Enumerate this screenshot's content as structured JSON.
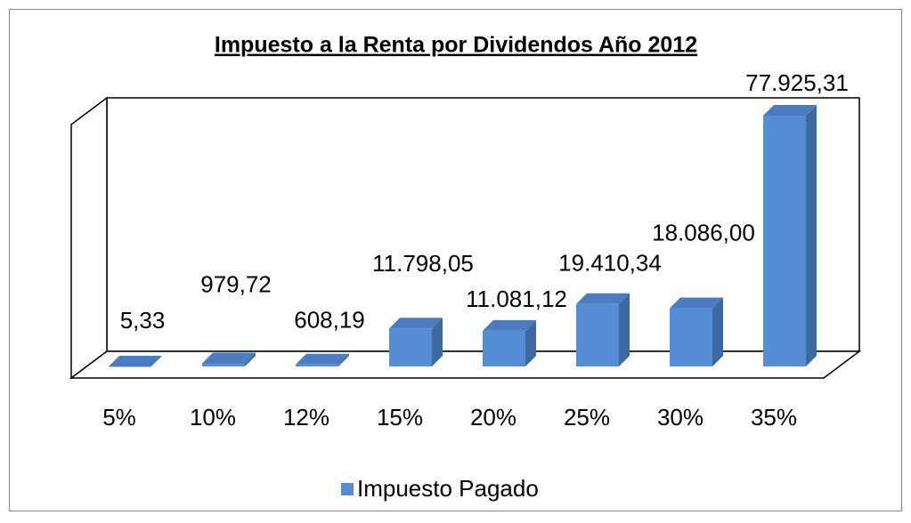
{
  "chart_data": {
    "type": "bar3d",
    "title": "Impuesto a la Renta por Dividendos Año 2012",
    "categories": [
      "5%",
      "10%",
      "12%",
      "15%",
      "20%",
      "25%",
      "30%",
      "35%"
    ],
    "series": [
      {
        "name": "Impuesto Pagado",
        "color": "#558ed5",
        "values": [
          5.33,
          979.72,
          608.19,
          11798.05,
          11081.12,
          19410.34,
          18086.0,
          77925.31
        ],
        "value_labels": [
          "5,33",
          "979,72",
          "608,19",
          "11.798,05",
          "11.081,12",
          "19.410,34",
          "18.086,00",
          "77.925,31"
        ]
      }
    ],
    "legend": "bottom"
  }
}
